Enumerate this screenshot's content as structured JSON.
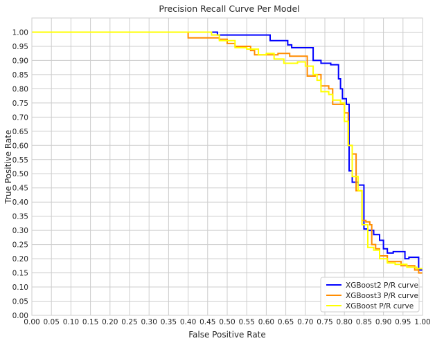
{
  "chart_data": {
    "type": "line",
    "title": "Precision Recall Curve Per Model",
    "xlabel": "False Positive Rate",
    "ylabel": "True Positive Rate",
    "xlim": [
      0,
      1
    ],
    "ylim": [
      0,
      1.05
    ],
    "grid": true,
    "legend_position": "bottom-right",
    "x_ticks": [
      "0.00",
      "0.05",
      "0.10",
      "0.15",
      "0.20",
      "0.25",
      "0.30",
      "0.35",
      "0.40",
      "0.45",
      "0.50",
      "0.55",
      "0.60",
      "0.65",
      "0.70",
      "0.75",
      "0.80",
      "0.85",
      "0.90",
      "0.95",
      "1.00"
    ],
    "y_ticks": [
      "0.00",
      "0.05",
      "0.10",
      "0.15",
      "0.20",
      "0.25",
      "0.30",
      "0.35",
      "0.40",
      "0.45",
      "0.50",
      "0.55",
      "0.60",
      "0.65",
      "0.70",
      "0.75",
      "0.80",
      "0.85",
      "0.90",
      "0.95",
      "1.00"
    ],
    "series": [
      {
        "name": "XGBoost2 P/R curve",
        "color": "#0000ff",
        "points": [
          [
            0,
            1.0
          ],
          [
            0.475,
            1.0
          ],
          [
            0.475,
            0.99
          ],
          [
            0.61,
            0.99
          ],
          [
            0.61,
            0.97
          ],
          [
            0.655,
            0.97
          ],
          [
            0.655,
            0.955
          ],
          [
            0.665,
            0.955
          ],
          [
            0.665,
            0.945
          ],
          [
            0.72,
            0.945
          ],
          [
            0.72,
            0.9
          ],
          [
            0.74,
            0.9
          ],
          [
            0.74,
            0.89
          ],
          [
            0.765,
            0.89
          ],
          [
            0.765,
            0.885
          ],
          [
            0.785,
            0.885
          ],
          [
            0.785,
            0.835
          ],
          [
            0.79,
            0.835
          ],
          [
            0.79,
            0.8
          ],
          [
            0.795,
            0.8
          ],
          [
            0.795,
            0.765
          ],
          [
            0.805,
            0.765
          ],
          [
            0.805,
            0.745
          ],
          [
            0.812,
            0.745
          ],
          [
            0.812,
            0.51
          ],
          [
            0.82,
            0.51
          ],
          [
            0.82,
            0.47
          ],
          [
            0.835,
            0.47
          ],
          [
            0.835,
            0.46
          ],
          [
            0.85,
            0.46
          ],
          [
            0.85,
            0.305
          ],
          [
            0.86,
            0.305
          ],
          [
            0.86,
            0.3
          ],
          [
            0.875,
            0.3
          ],
          [
            0.875,
            0.285
          ],
          [
            0.89,
            0.285
          ],
          [
            0.89,
            0.265
          ],
          [
            0.9,
            0.265
          ],
          [
            0.9,
            0.235
          ],
          [
            0.91,
            0.235
          ],
          [
            0.91,
            0.22
          ],
          [
            0.925,
            0.22
          ],
          [
            0.925,
            0.225
          ],
          [
            0.955,
            0.225
          ],
          [
            0.955,
            0.2
          ],
          [
            0.965,
            0.2
          ],
          [
            0.965,
            0.205
          ],
          [
            0.99,
            0.205
          ],
          [
            0.99,
            0.16
          ],
          [
            1.0,
            0.16
          ]
        ]
      },
      {
        "name": "XGBoost3 P/R curve",
        "color": "#ff8c00",
        "points": [
          [
            0,
            1.0
          ],
          [
            0.4,
            1.0
          ],
          [
            0.4,
            0.98
          ],
          [
            0.48,
            0.98
          ],
          [
            0.48,
            0.975
          ],
          [
            0.5,
            0.975
          ],
          [
            0.5,
            0.96
          ],
          [
            0.52,
            0.96
          ],
          [
            0.52,
            0.95
          ],
          [
            0.56,
            0.95
          ],
          [
            0.56,
            0.935
          ],
          [
            0.57,
            0.935
          ],
          [
            0.57,
            0.92
          ],
          [
            0.63,
            0.92
          ],
          [
            0.63,
            0.925
          ],
          [
            0.66,
            0.925
          ],
          [
            0.66,
            0.915
          ],
          [
            0.705,
            0.915
          ],
          [
            0.705,
            0.845
          ],
          [
            0.725,
            0.845
          ],
          [
            0.725,
            0.85
          ],
          [
            0.74,
            0.85
          ],
          [
            0.74,
            0.81
          ],
          [
            0.76,
            0.81
          ],
          [
            0.76,
            0.8
          ],
          [
            0.77,
            0.8
          ],
          [
            0.77,
            0.745
          ],
          [
            0.8,
            0.745
          ],
          [
            0.8,
            0.715
          ],
          [
            0.81,
            0.715
          ],
          [
            0.81,
            0.6
          ],
          [
            0.82,
            0.6
          ],
          [
            0.82,
            0.57
          ],
          [
            0.83,
            0.57
          ],
          [
            0.83,
            0.44
          ],
          [
            0.845,
            0.44
          ],
          [
            0.845,
            0.335
          ],
          [
            0.855,
            0.335
          ],
          [
            0.855,
            0.33
          ],
          [
            0.865,
            0.33
          ],
          [
            0.865,
            0.32
          ],
          [
            0.87,
            0.32
          ],
          [
            0.87,
            0.25
          ],
          [
            0.88,
            0.25
          ],
          [
            0.88,
            0.235
          ],
          [
            0.89,
            0.235
          ],
          [
            0.89,
            0.21
          ],
          [
            0.91,
            0.21
          ],
          [
            0.91,
            0.19
          ],
          [
            0.945,
            0.19
          ],
          [
            0.945,
            0.175
          ],
          [
            0.98,
            0.175
          ],
          [
            0.98,
            0.16
          ],
          [
            0.99,
            0.16
          ],
          [
            0.99,
            0.15
          ],
          [
            1.0,
            0.15
          ]
        ]
      },
      {
        "name": "XGBoost P/R curve",
        "color": "#ffff00",
        "points": [
          [
            0,
            1.0
          ],
          [
            0.46,
            1.0
          ],
          [
            0.46,
            0.99
          ],
          [
            0.48,
            0.99
          ],
          [
            0.48,
            0.97
          ],
          [
            0.52,
            0.97
          ],
          [
            0.52,
            0.945
          ],
          [
            0.55,
            0.945
          ],
          [
            0.55,
            0.94
          ],
          [
            0.58,
            0.94
          ],
          [
            0.58,
            0.92
          ],
          [
            0.6,
            0.92
          ],
          [
            0.6,
            0.925
          ],
          [
            0.62,
            0.925
          ],
          [
            0.62,
            0.905
          ],
          [
            0.645,
            0.905
          ],
          [
            0.645,
            0.89
          ],
          [
            0.68,
            0.89
          ],
          [
            0.68,
            0.895
          ],
          [
            0.7,
            0.895
          ],
          [
            0.7,
            0.88
          ],
          [
            0.72,
            0.88
          ],
          [
            0.72,
            0.85
          ],
          [
            0.73,
            0.85
          ],
          [
            0.73,
            0.83
          ],
          [
            0.74,
            0.83
          ],
          [
            0.74,
            0.79
          ],
          [
            0.76,
            0.79
          ],
          [
            0.76,
            0.78
          ],
          [
            0.77,
            0.78
          ],
          [
            0.77,
            0.76
          ],
          [
            0.79,
            0.76
          ],
          [
            0.79,
            0.75
          ],
          [
            0.8,
            0.75
          ],
          [
            0.8,
            0.685
          ],
          [
            0.81,
            0.685
          ],
          [
            0.81,
            0.6
          ],
          [
            0.82,
            0.6
          ],
          [
            0.82,
            0.49
          ],
          [
            0.835,
            0.49
          ],
          [
            0.835,
            0.44
          ],
          [
            0.845,
            0.44
          ],
          [
            0.845,
            0.32
          ],
          [
            0.86,
            0.32
          ],
          [
            0.86,
            0.24
          ],
          [
            0.875,
            0.24
          ],
          [
            0.875,
            0.23
          ],
          [
            0.89,
            0.23
          ],
          [
            0.89,
            0.2
          ],
          [
            0.91,
            0.2
          ],
          [
            0.91,
            0.185
          ],
          [
            0.93,
            0.185
          ],
          [
            0.93,
            0.18
          ],
          [
            0.96,
            0.18
          ],
          [
            0.96,
            0.17
          ],
          [
            0.985,
            0.17
          ],
          [
            0.985,
            0.165
          ],
          [
            1.0,
            0.165
          ]
        ]
      }
    ]
  }
}
